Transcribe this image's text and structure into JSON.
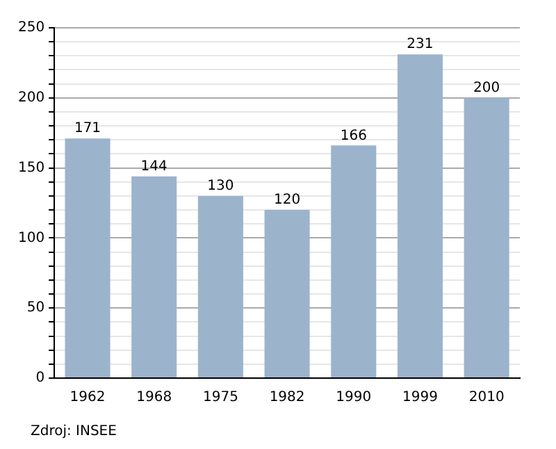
{
  "chart_data": {
    "type": "bar",
    "categories": [
      "1962",
      "1968",
      "1975",
      "1982",
      "1990",
      "1999",
      "2010"
    ],
    "values": [
      171,
      144,
      130,
      120,
      166,
      231,
      200
    ],
    "color": "#9cb3cc",
    "ylim": [
      0,
      250
    ],
    "yticks": [
      0,
      {
        "value": 10,
        "label": null
      },
      {
        "value": 20,
        "label": null
      },
      {
        "value": 30,
        "label": null
      },
      {
        "value": 40,
        "label": null
      },
      50,
      {
        "value": 60,
        "label": null
      },
      {
        "value": 70,
        "label": null
      },
      {
        "value": 80,
        "label": null
      },
      {
        "value": 90,
        "label": null
      },
      100,
      {
        "value": 110,
        "label": null
      },
      {
        "value": 120,
        "label": null
      },
      {
        "value": 130,
        "label": null
      },
      {
        "value": 140,
        "label": null
      },
      150,
      {
        "value": 160,
        "label": null
      },
      {
        "value": 170,
        "label": null
      },
      {
        "value": 180,
        "label": null
      },
      {
        "value": 190,
        "label": null
      },
      200,
      {
        "value": 210,
        "label": null
      },
      {
        "value": 220,
        "label": null
      },
      {
        "value": 230,
        "label": null
      },
      {
        "value": 240,
        "label": null
      },
      250
    ],
    "grid": "y",
    "data_labels": true,
    "annotations": [
      "Zdroj: INSEE"
    ]
  }
}
